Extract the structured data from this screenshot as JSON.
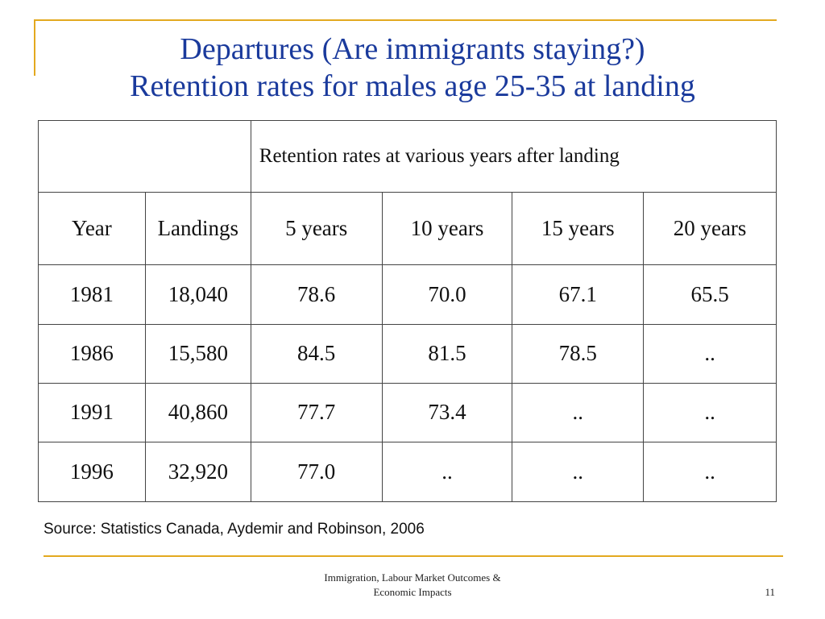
{
  "title": {
    "line1": "Departures (Are immigrants staying?)",
    "line2": "Retention rates for males age 25-35 at landing"
  },
  "table": {
    "group_header": "Retention rates at various years after landing",
    "columns": [
      "Year",
      "Landings",
      "5 years",
      "10 years",
      "15 years",
      "20 years"
    ],
    "rows": [
      [
        "1981",
        "18,040",
        "78.6",
        "70.0",
        "67.1",
        "65.5"
      ],
      [
        "1986",
        "15,580",
        "84.5",
        "81.5",
        "78.5",
        ".."
      ],
      [
        "1991",
        "40,860",
        "77.7",
        "73.4",
        "..",
        ".."
      ],
      [
        "1996",
        "32,920",
        "77.0",
        "..",
        "..",
        ".."
      ]
    ]
  },
  "source": "Source: Statistics Canada, Aydemir and Robinson, 2006",
  "footer": {
    "line1": "Immigration, Labour Market Outcomes &",
    "line2": "Economic Impacts",
    "page_number": "11"
  },
  "colors": {
    "accent_gold": "#e3a91f",
    "title_blue": "#1a3a9c"
  }
}
